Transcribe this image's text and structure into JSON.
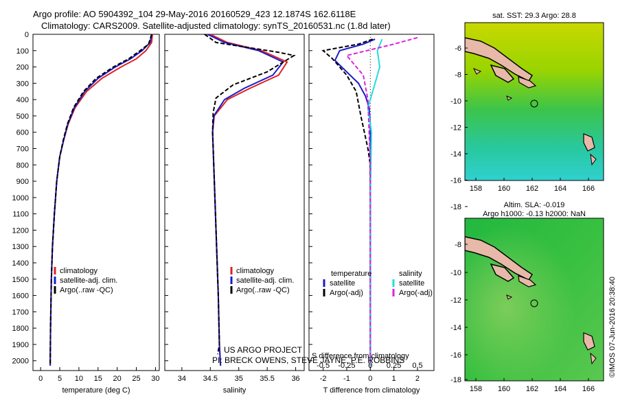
{
  "header": {
    "line1": "Argo profile: AO 5904392_104 29-May-2016 20160529_423 12.1874S 162.6118E",
    "line2": "Climatology: CARS2009. Satellite-adjusted climatology: synTS_20160531.nc (1.8d later)"
  },
  "colors": {
    "climatology": "#e02020",
    "satellite": "#1a1acc",
    "argo": "#000000",
    "sat_salinity": "#22dddd",
    "argo_salinity": "#dd22dd",
    "land": "#e8b8a8"
  },
  "project": {
    "line1": "US ARGO PROJECT",
    "line2": "PI: BRECK OWENS, STEVE JAYNE, P.E. ROBBINS"
  },
  "credit": "©IMOS 07-Jun-2016 20:38:40",
  "chart_data": [
    {
      "type": "line",
      "xlabel": "temperature (deg C)",
      "ylabel": "",
      "xlim": [
        -2,
        31
      ],
      "ylim": [
        2060,
        0
      ],
      "xticks": [
        0,
        5,
        10,
        15,
        20,
        25,
        30
      ],
      "yticks": [
        0,
        100,
        200,
        300,
        400,
        500,
        600,
        700,
        800,
        900,
        1000,
        1100,
        1200,
        1300,
        1400,
        1500,
        1600,
        1700,
        1800,
        1900,
        2000
      ],
      "legend": [
        "climatology",
        "satellite-adj. clim.",
        "Argo(..raw -QC)"
      ],
      "series": [
        {
          "name": "climatology",
          "x": [
            29.2,
            29.0,
            27.5,
            25.0,
            21.0,
            16.0,
            12.0,
            9.0,
            7.2,
            6.0,
            5.0,
            4.2,
            3.6,
            3.1,
            2.8,
            2.6,
            2.5
          ],
          "y": [
            0,
            50,
            100,
            150,
            200,
            270,
            350,
            450,
            550,
            650,
            750,
            900,
            1100,
            1300,
            1500,
            1800,
            2030
          ]
        },
        {
          "name": "satellite-adj. clim.",
          "x": [
            29.0,
            28.6,
            26.5,
            23.5,
            19.5,
            15.0,
            11.5,
            8.8,
            7.1,
            6.0,
            5.0,
            4.2,
            3.6,
            3.1,
            2.8,
            2.6,
            2.5
          ],
          "y": [
            0,
            50,
            100,
            150,
            200,
            270,
            350,
            450,
            550,
            650,
            750,
            900,
            1100,
            1300,
            1500,
            1800,
            2030
          ]
        },
        {
          "name": "Argo(..raw -QC)",
          "x": [
            29.0,
            28.2,
            26.0,
            23.0,
            19.0,
            14.5,
            11.2,
            8.6,
            7.0,
            5.9,
            5.0,
            4.2,
            3.6,
            3.1,
            2.8,
            2.6,
            2.5
          ],
          "y": [
            0,
            60,
            100,
            150,
            200,
            270,
            350,
            450,
            550,
            650,
            750,
            900,
            1100,
            1300,
            1500,
            1800,
            2030
          ]
        }
      ]
    },
    {
      "type": "line",
      "xlabel": "salinity",
      "ylabel": "",
      "xlim": [
        33.7,
        36.15
      ],
      "ylim": [
        2060,
        0
      ],
      "xticks": [
        34,
        34.5,
        35,
        35.5,
        36
      ],
      "legend": [
        "climatology",
        "satellite-adj. clim.",
        "Argo(..raw -QC)"
      ],
      "series": [
        {
          "name": "climatology",
          "x": [
            34.5,
            34.8,
            35.4,
            35.85,
            35.7,
            35.2,
            34.8,
            34.57,
            34.54,
            34.56,
            34.6,
            34.64,
            34.66,
            34.68
          ],
          "y": [
            0,
            50,
            100,
            170,
            250,
            330,
            400,
            500,
            600,
            800,
            1200,
            1600,
            1900,
            2030
          ]
        },
        {
          "name": "satellite-adj. clim.",
          "x": [
            34.45,
            34.75,
            35.35,
            35.78,
            35.6,
            35.1,
            34.75,
            34.56,
            34.54,
            34.56,
            34.6,
            34.64,
            34.66,
            34.68
          ],
          "y": [
            0,
            50,
            100,
            170,
            250,
            330,
            400,
            500,
            600,
            800,
            1200,
            1600,
            1900,
            2030
          ]
        },
        {
          "name": "Argo(..raw -QC)",
          "x": [
            34.4,
            34.6,
            35.7,
            35.97,
            35.5,
            34.9,
            34.6,
            34.55,
            34.54,
            34.56,
            34.6,
            34.64,
            34.66,
            34.63
          ],
          "y": [
            0,
            50,
            110,
            130,
            230,
            310,
            390,
            480,
            600,
            800,
            1200,
            1600,
            1900,
            1960
          ]
        }
      ]
    },
    {
      "type": "line",
      "xlabel": "T difference from climatology",
      "title": "S difference from climatology",
      "xlim": [
        -2.6,
        2.7
      ],
      "ylim": [
        2060,
        0
      ],
      "xticks": [
        -2,
        -1,
        0,
        1,
        2
      ],
      "top_xticks": [
        "-0.5",
        "-0.25",
        "0",
        "0.25",
        "0.5"
      ],
      "legend_titles": [
        "temperature",
        "salinity"
      ],
      "legend": [
        "satellite",
        "Argo(-adj)",
        "satellite",
        "Argo(-adj)"
      ],
      "series": [
        {
          "name": "temperature satellite",
          "x": [
            0.2,
            -0.3,
            -1.3,
            -1.5,
            -1.0,
            -0.5,
            -0.2,
            -0.05,
            0,
            0,
            0,
            0
          ],
          "y": [
            30,
            60,
            100,
            160,
            230,
            300,
            380,
            450,
            550,
            800,
            1500,
            2030
          ]
        },
        {
          "name": "temperature Argo(-adj)",
          "x": [
            0.1,
            -0.5,
            -2.0,
            -1.6,
            -1.0,
            -0.6,
            -0.4,
            -0.1,
            0,
            0,
            0,
            0
          ],
          "y": [
            30,
            60,
            100,
            150,
            250,
            350,
            500,
            700,
            800,
            1000,
            1500,
            2030
          ]
        },
        {
          "name": "salinity satellite",
          "x": [
            0.5,
            0.3,
            0.4,
            0.2,
            -0.1,
            0.05,
            0,
            0
          ],
          "y": [
            30,
            100,
            200,
            300,
            450,
            600,
            1000,
            2030
          ]
        },
        {
          "name": "salinity Argo(-adj)",
          "x": [
            2.0,
            1.0,
            -1.0,
            -0.3,
            -0.1,
            0,
            0
          ],
          "y": [
            20,
            60,
            130,
            250,
            400,
            800,
            2030
          ]
        }
      ]
    }
  ],
  "maps": [
    {
      "title": "sat. SST: 29.3 Argo: 28.8",
      "xticks": [
        "158",
        "160",
        "162",
        "164",
        "166"
      ],
      "yticks": [
        "-6",
        "-8",
        "-10",
        "-12",
        "-14",
        "-16",
        "-18"
      ]
    },
    {
      "title_line1": "Altim. SLA: -0.019",
      "title_line2": "Argo h1000: -0.13 h2000: NaN",
      "xticks": [
        "158",
        "160",
        "162",
        "164",
        "166"
      ],
      "yticks": [
        "-8",
        "-10",
        "-12",
        "-14",
        "-16",
        "-18"
      ]
    }
  ]
}
